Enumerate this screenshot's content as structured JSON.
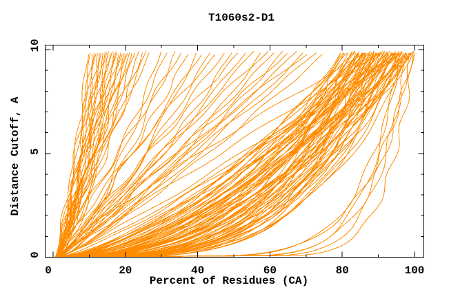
{
  "chart_data": {
    "type": "line",
    "title": "T1060s2-D1",
    "xlabel": "Percent of Residues (CA)",
    "ylabel": "Distance Cutoff, A",
    "xlim": [
      0,
      100
    ],
    "ylim": [
      0,
      10
    ],
    "x_major_ticks": [
      0,
      20,
      40,
      60,
      80,
      100
    ],
    "x_minor_ticks": [
      10,
      30,
      50,
      70,
      90
    ],
    "y_major_ticks": [
      0,
      5,
      10
    ],
    "y_minor_ticks": [
      1,
      2,
      3,
      4,
      6,
      7,
      8,
      9
    ],
    "x_tick_labels": [
      "0",
      "20",
      "40",
      "60",
      "80",
      "100"
    ],
    "y_tick_labels": [
      "0",
      "5",
      "10"
    ],
    "grid": false,
    "legend": "none",
    "line_color": "#FF8C00",
    "axis_color": "#000000",
    "background_color": "#FFFFFF",
    "series_description": "Bundle of ~140 per-model cumulative accuracy curves (CASP GDT-style). Each curve i is modeled as percent(d) = s + (m - s) * (d/10)^e for distance cutoff d in [0,10] Angstroms, s ~ 1%. Parameters [m = percent at 10A, e = shape exponent] below.",
    "curve_start_percent": 1.0,
    "curve_top_cutoff": 9.9,
    "curves": [
      [
        10,
        0.7
      ],
      [
        10.5,
        0.85
      ],
      [
        11,
        0.75
      ],
      [
        11.5,
        0.95
      ],
      [
        12,
        0.8
      ],
      [
        12.5,
        0.7
      ],
      [
        13,
        0.9
      ],
      [
        13.5,
        0.78
      ],
      [
        14,
        1.0
      ],
      [
        14.5,
        0.85
      ],
      [
        15,
        0.72
      ],
      [
        15.5,
        0.92
      ],
      [
        16,
        0.8
      ],
      [
        16.5,
        1.05
      ],
      [
        17,
        0.75
      ],
      [
        17.5,
        0.88
      ],
      [
        18,
        0.95
      ],
      [
        18.5,
        0.8
      ],
      [
        19,
        1.1
      ],
      [
        19.5,
        0.85
      ],
      [
        20,
        0.75
      ],
      [
        20.5,
        0.98
      ],
      [
        21,
        0.88
      ],
      [
        21.5,
        1.05
      ],
      [
        22,
        0.8
      ],
      [
        23,
        0.92
      ],
      [
        24,
        1.0
      ],
      [
        25,
        0.85
      ],
      [
        26,
        0.95
      ],
      [
        27,
        1.08
      ],
      [
        30,
        0.65
      ],
      [
        32,
        0.9
      ],
      [
        34,
        0.75
      ],
      [
        36,
        1.05
      ],
      [
        38,
        0.85
      ],
      [
        40,
        0.7
      ],
      [
        42,
        0.95
      ],
      [
        44,
        0.8
      ],
      [
        46,
        1.1
      ],
      [
        48,
        0.9
      ],
      [
        50,
        0.75
      ],
      [
        52,
        1.0
      ],
      [
        54,
        0.85
      ],
      [
        56,
        0.95
      ],
      [
        58,
        0.7
      ],
      [
        60,
        1.05
      ],
      [
        62,
        0.88
      ],
      [
        64,
        0.78
      ],
      [
        66,
        1.0
      ],
      [
        68,
        0.9
      ],
      [
        70,
        0.82
      ],
      [
        72,
        1.1
      ],
      [
        74,
        0.95
      ],
      [
        76,
        0.85
      ],
      [
        80,
        0.45
      ],
      [
        80,
        0.3
      ],
      [
        81,
        0.55
      ],
      [
        81,
        0.38
      ],
      [
        82,
        0.28
      ],
      [
        82,
        0.6
      ],
      [
        83,
        0.42
      ],
      [
        83,
        0.33
      ],
      [
        84,
        0.5
      ],
      [
        84,
        0.25
      ],
      [
        84,
        0.65
      ],
      [
        85,
        0.38
      ],
      [
        85,
        0.55
      ],
      [
        85,
        0.3
      ],
      [
        85,
        0.45
      ],
      [
        86,
        0.22
      ],
      [
        86,
        0.6
      ],
      [
        86,
        0.4
      ],
      [
        86,
        0.32
      ],
      [
        87,
        0.52
      ],
      [
        87,
        0.28
      ],
      [
        87,
        0.68
      ],
      [
        87,
        0.42
      ],
      [
        88,
        0.35
      ],
      [
        88,
        0.58
      ],
      [
        88,
        0.25
      ],
      [
        88,
        0.48
      ],
      [
        89,
        0.3
      ],
      [
        89,
        0.62
      ],
      [
        89,
        0.4
      ],
      [
        89,
        0.22
      ],
      [
        90,
        0.52
      ],
      [
        90,
        0.33
      ],
      [
        90,
        0.7
      ],
      [
        90,
        0.28
      ],
      [
        90,
        0.45
      ],
      [
        91,
        0.38
      ],
      [
        91,
        0.58
      ],
      [
        91,
        0.25
      ],
      [
        91,
        0.48
      ],
      [
        92,
        0.3
      ],
      [
        92,
        0.65
      ],
      [
        92,
        0.42
      ],
      [
        92,
        0.35
      ],
      [
        93,
        0.55
      ],
      [
        93,
        0.27
      ],
      [
        93,
        0.48
      ],
      [
        93,
        0.38
      ],
      [
        94,
        0.6
      ],
      [
        94,
        0.3
      ],
      [
        94,
        0.44
      ],
      [
        94,
        0.24
      ],
      [
        95,
        0.52
      ],
      [
        95,
        0.35
      ],
      [
        95,
        0.68
      ],
      [
        95,
        0.28
      ],
      [
        96,
        0.45
      ],
      [
        96,
        0.32
      ],
      [
        96,
        0.58
      ],
      [
        96,
        0.25
      ],
      [
        97,
        0.4
      ],
      [
        97,
        0.55
      ],
      [
        97,
        0.3
      ],
      [
        97,
        0.72
      ],
      [
        98,
        0.35
      ],
      [
        98,
        0.48
      ],
      [
        98,
        0.27
      ],
      [
        99,
        0.42
      ],
      [
        99,
        0.6
      ],
      [
        99,
        0.32
      ],
      [
        100,
        0.5
      ],
      [
        100,
        0.38
      ],
      [
        100,
        0.28
      ],
      [
        100,
        0.62
      ],
      [
        100,
        0.45
      ],
      [
        96,
        0.9
      ],
      [
        92,
        1.0
      ],
      [
        88,
        1.15
      ],
      [
        94,
        0.8
      ],
      [
        98,
        0.85
      ],
      [
        96,
        0.1
      ],
      [
        97,
        0.13
      ],
      [
        98,
        0.09
      ],
      [
        99,
        0.11
      ],
      [
        100,
        0.14
      ],
      [
        100,
        0.08
      ]
    ]
  }
}
